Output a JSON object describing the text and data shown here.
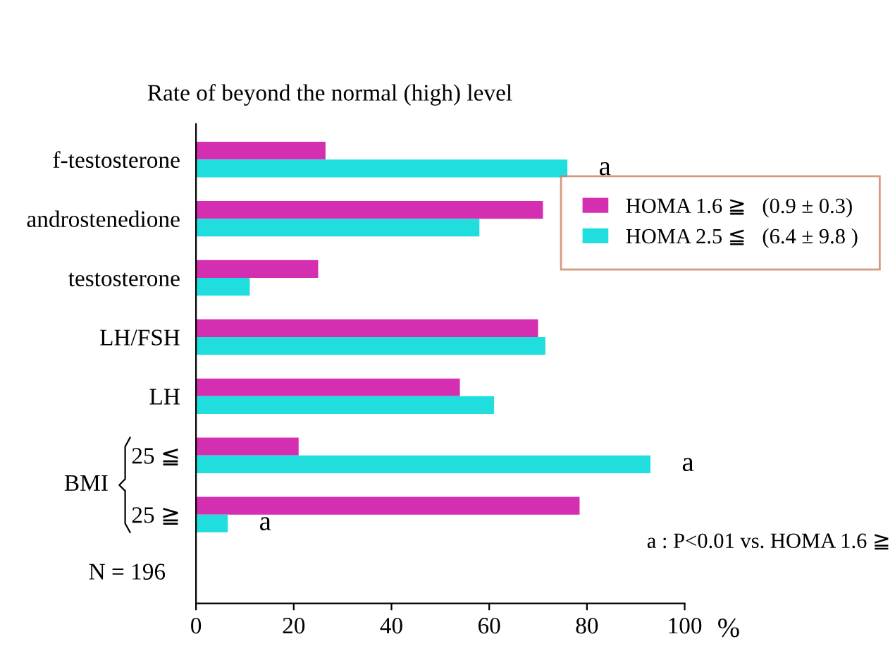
{
  "chart_data": {
    "type": "bar",
    "orientation": "horizontal",
    "title": "Rate of beyond the normal (high) level",
    "xlabel": "%",
    "categories": [
      "f-testosterone",
      "androstenedione",
      "testosterone",
      "LH/FSH",
      "LH",
      "25 ≦",
      "25 ≧"
    ],
    "series": [
      {
        "name": "HOMA 1.6 ≧   (0.9 ± 0.3)",
        "color": "#d42fb0",
        "values": [
          26.5,
          71,
          25,
          70,
          54,
          21,
          78.5
        ]
      },
      {
        "name": "HOMA 2.5 ≦   (6.4 ± 9.8 )",
        "color": "#20dede",
        "values": [
          76,
          58,
          11,
          71.5,
          61,
          93,
          6.5
        ]
      }
    ],
    "xlim": [
      0,
      100
    ],
    "xticks": [
      0,
      20,
      40,
      60,
      80,
      100
    ],
    "grid": false,
    "legend": "right",
    "annotations": [
      "BMI",
      "N = 196",
      "a : P<0.01 vs. HOMA 1.6 ≧",
      {
        "text": "a",
        "x": 76,
        "y": "f-testosterone"
      },
      {
        "text": "a",
        "x": 93,
        "y": "25 ≦"
      },
      {
        "text": "a",
        "x": 6.5,
        "y": "25 ≧"
      }
    ]
  }
}
